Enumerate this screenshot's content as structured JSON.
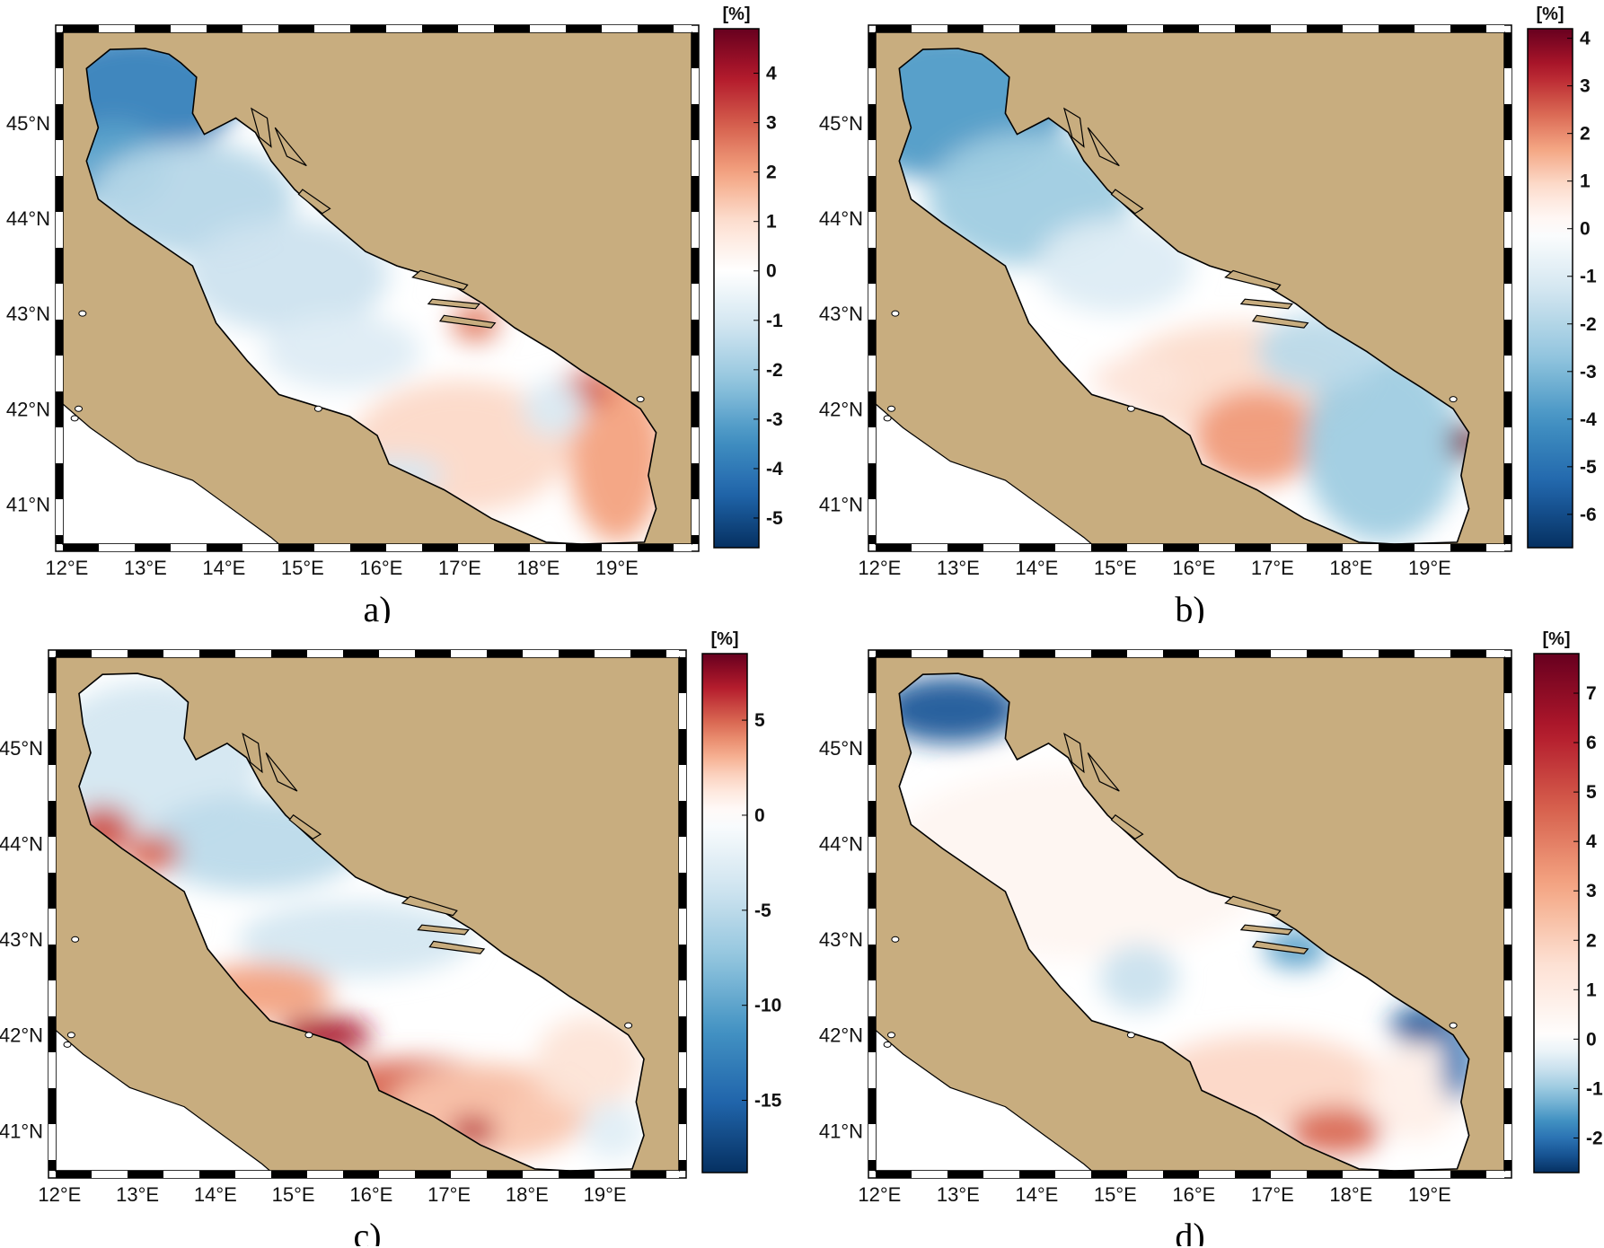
{
  "figure": {
    "panels": [
      {
        "id": "a",
        "caption": "a)",
        "colorbar": {
          "unit": "[%]",
          "ticks": [
            "4",
            "3",
            "2",
            "1",
            "0",
            "-1",
            "-2",
            "-3",
            "-4",
            "-5"
          ],
          "max": 4.9,
          "min": -5.6
        },
        "lon_ticks": [
          "12°E",
          "13°E",
          "14°E",
          "15°E",
          "16°E",
          "17°E",
          "18°E",
          "19°E"
        ],
        "lat_ticks": [
          "45°N",
          "44°N",
          "43°N",
          "42°N",
          "41°N"
        ]
      },
      {
        "id": "b",
        "caption": "b)",
        "colorbar": {
          "unit": "[%]",
          "ticks": [
            "4",
            "3",
            "2",
            "1",
            "0",
            "-1",
            "-2",
            "-3",
            "-4",
            "-5",
            "-6"
          ],
          "max": 4.2,
          "min": -6.7
        },
        "lon_ticks": [
          "12°E",
          "13°E",
          "14°E",
          "15°E",
          "16°E",
          "17°E",
          "18°E",
          "19°E"
        ],
        "lat_ticks": [
          "45°N",
          "44°N",
          "43°N",
          "42°N",
          "41°N"
        ]
      },
      {
        "id": "c",
        "caption": "c)",
        "colorbar": {
          "unit": "[%]",
          "ticks": [
            "5",
            "0",
            "-5",
            "-10",
            "-15"
          ],
          "max": 8.5,
          "min": -18.8
        },
        "lon_ticks": [
          "12°E",
          "13°E",
          "14°E",
          "15°E",
          "16°E",
          "17°E",
          "18°E",
          "19°E"
        ],
        "lat_ticks": [
          "45°N",
          "44°N",
          "43°N",
          "42°N",
          "41°N"
        ]
      },
      {
        "id": "d",
        "caption": "d)",
        "colorbar": {
          "unit": "[%]",
          "ticks": [
            "7",
            "6",
            "5",
            "4",
            "3",
            "2",
            "1",
            "0",
            "-1",
            "-2"
          ],
          "max": 7.8,
          "min": -2.7
        },
        "lon_ticks": [
          "12°E",
          "13°E",
          "14°E",
          "15°E",
          "16°E",
          "17°E",
          "18°E",
          "19°E"
        ],
        "lat_ticks": [
          "45°N",
          "44°N",
          "43°N",
          "42°N",
          "41°N"
        ]
      }
    ],
    "colors": {
      "land": "#c8ad7f",
      "sea_outside": "#ffffff",
      "red": "#b2182b",
      "blue": "#2166ac",
      "neutral": "#ffffff"
    }
  }
}
